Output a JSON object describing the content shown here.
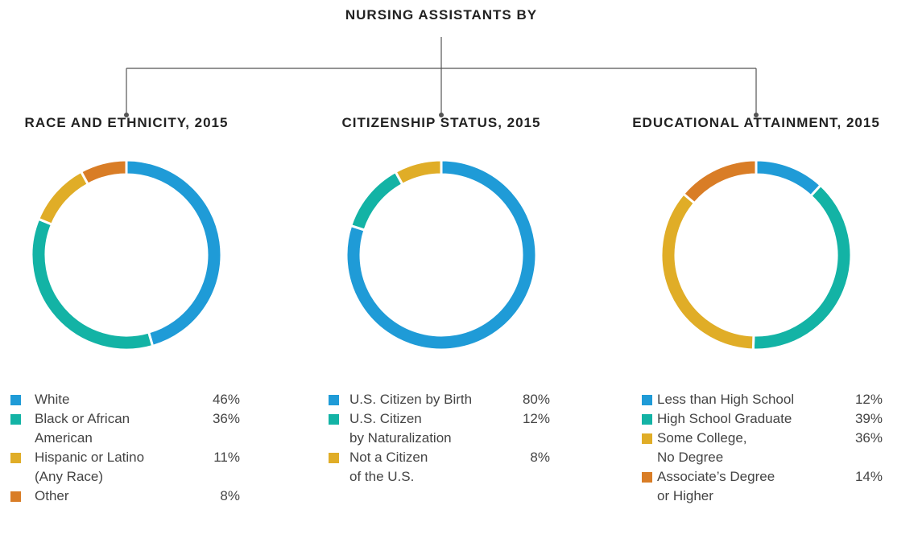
{
  "header": {
    "title": "NURSING ASSISTANTS BY"
  },
  "chart_data": [
    {
      "type": "pie",
      "title": "RACE AND ETHNICITY, 2015",
      "categories": [
        "White",
        "Black or African\nAmerican",
        "Hispanic or Latino\n(Any Race)",
        "Other"
      ],
      "values": [
        46,
        36,
        11,
        8
      ],
      "value_labels": [
        "46%",
        "36%",
        "11%",
        "8%"
      ],
      "colors": [
        "#1f9bd7",
        "#13b3a5",
        "#e0ad27",
        "#d97d26"
      ]
    },
    {
      "type": "pie",
      "title": "CITIZENSHIP STATUS, 2015",
      "categories": [
        "U.S. Citizen by Birth",
        "U.S. Citizen\nby Naturalization",
        "Not a Citizen\nof the U.S."
      ],
      "values": [
        80,
        12,
        8
      ],
      "value_labels": [
        "80%",
        "12%",
        "8%"
      ],
      "colors": [
        "#1f9bd7",
        "#13b3a5",
        "#e0ad27"
      ]
    },
    {
      "type": "pie",
      "title": "EDUCATIONAL ATTAINMENT, 2015",
      "categories": [
        "Less than High School",
        "High School Graduate",
        "Some College,\nNo Degree",
        "Associate’s Degree\nor Higher"
      ],
      "values": [
        12,
        39,
        36,
        14
      ],
      "value_labels": [
        "12%",
        "39%",
        "36%",
        "14%"
      ],
      "colors": [
        "#1f9bd7",
        "#13b3a5",
        "#e0ad27",
        "#d97d26"
      ]
    }
  ]
}
